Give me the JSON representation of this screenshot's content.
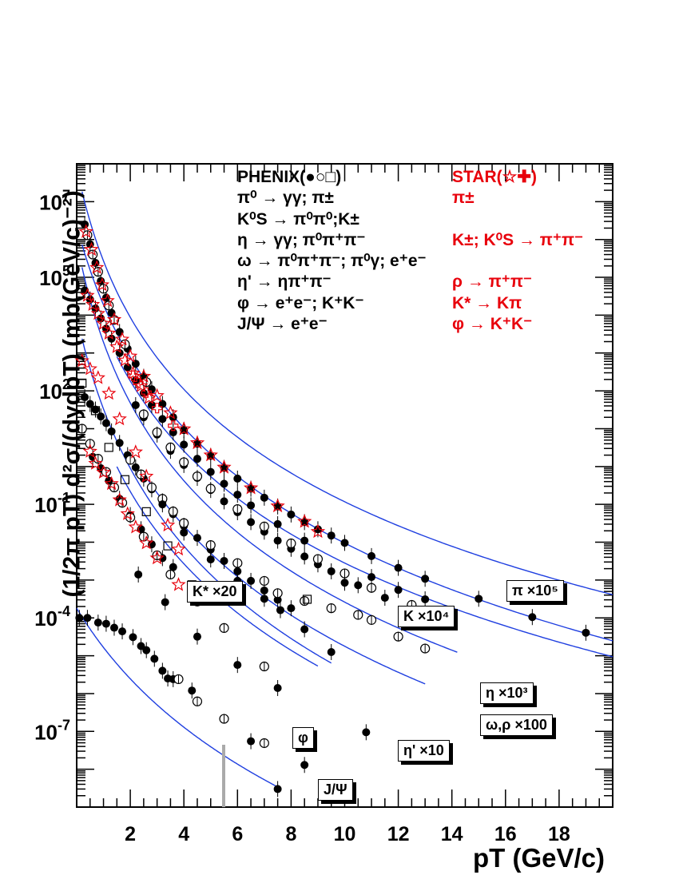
{
  "chart_data": {
    "type": "scatter",
    "title": "",
    "xlabel": "pT (GeV/c)",
    "ylabel": "(1/2π pT) d²σ/(dydpT) (mb(GeV/c)⁻²)",
    "xlim": [
      0,
      20
    ],
    "ylim": [
      1e-09,
      100000000.0
    ],
    "yscale": "log",
    "x_ticks": [
      "2",
      "4",
      "6",
      "8",
      "10",
      "12",
      "14",
      "16",
      "18"
    ],
    "y_ticks": [
      "10^7",
      "10^5",
      "10^2",
      "10^-1",
      "10^-4",
      "10^-7"
    ],
    "legend": {
      "phenix_header": "PHENIX(●○□)",
      "star_header": "STAR(☆✚)",
      "phenix_entries": [
        "π⁰ → γγ; π±",
        "K⁰S → π⁰π⁰;K±",
        "η → γγ; π⁰π⁺π⁻",
        "ω → π⁰π⁺π⁻; π⁰γ; e⁺e⁻",
        "η' → ηπ⁺π⁻",
        "φ → e⁺e⁻; K⁺K⁻",
        "J/Ψ → e⁺e⁻"
      ],
      "star_entries": [
        "π±",
        "",
        "K±; K⁰S → π⁺π⁻",
        "",
        "ρ → π⁺π⁻",
        "K* → Kπ",
        "φ → K⁺K⁻"
      ]
    },
    "series": [
      {
        "label": "π ×10⁵",
        "A": 80000000.0,
        "p0": 1.1,
        "n": 8.8,
        "xmin": 0.2,
        "xmax": 20.0,
        "points": [
          [
            0.3,
            2500000.0
          ],
          [
            0.5,
            750000.0
          ],
          [
            0.7,
            240000.0
          ],
          [
            0.9,
            80000.0
          ],
          [
            1.1,
            29000.0
          ],
          [
            1.3,
            11500.0
          ],
          [
            1.6,
            3600.0
          ],
          [
            1.9,
            1300.0
          ],
          [
            2.2,
            520
          ],
          [
            2.5,
            235
          ],
          [
            2.8,
            110
          ],
          [
            3.2,
            45
          ],
          [
            3.6,
            20
          ],
          [
            4.0,
            9.2
          ],
          [
            4.5,
            4.0
          ],
          [
            5.0,
            1.9
          ],
          [
            5.5,
            0.92
          ],
          [
            6.0,
            0.48
          ],
          [
            6.5,
            0.26
          ],
          [
            7.0,
            0.15
          ],
          [
            7.5,
            0.088
          ],
          [
            8.0,
            0.054
          ],
          [
            8.5,
            0.034
          ],
          [
            9.0,
            0.022
          ],
          [
            9.5,
            0.015
          ],
          [
            10.0,
            0.0096
          ],
          [
            11.0,
            0.0043
          ],
          [
            12.0,
            0.0021
          ],
          [
            13.0,
            0.00108
          ],
          [
            15.0,
            0.00032
          ],
          [
            17.0,
            0.000105
          ],
          [
            19.0,
            4.05e-05
          ]
        ],
        "open": [
          [
            0.4,
            1300000.0
          ],
          [
            0.6,
            400000.0
          ],
          [
            0.8,
            140000.0
          ],
          [
            1.0,
            50000.0
          ],
          [
            1.2,
            18000.0
          ],
          [
            1.4,
            7500.0
          ],
          [
            1.8,
            1700.0
          ],
          [
            2.6,
            170
          ]
        ],
        "stars": [
          [
            0.35,
            1600000.0
          ],
          [
            0.55,
            540000.0
          ],
          [
            0.75,
            180000.0
          ],
          [
            0.95,
            63000.0
          ],
          [
            1.15,
            24000.0
          ],
          [
            1.4,
            7600.0
          ],
          [
            1.7,
            2300.0
          ],
          [
            2.0,
            820
          ],
          [
            2.5,
            240
          ],
          [
            3.0,
            74
          ],
          [
            3.5,
            26
          ],
          [
            4.0,
            9.8
          ],
          [
            4.5,
            4.2
          ],
          [
            5.0,
            2.0
          ],
          [
            5.5,
            0.95
          ],
          [
            6.5,
            0.27
          ],
          [
            7.5,
            0.09
          ],
          [
            8.5,
            0.035
          ],
          [
            9.0,
            0.019
          ]
        ]
      },
      {
        "label": "K ×10⁴",
        "A": 2400000.0,
        "p0": 1.5,
        "n": 9.5,
        "xmin": 0.2,
        "xmax": 20.0,
        "points": [
          [
            0.3,
            45000.0
          ],
          [
            0.5,
            26000.0
          ],
          [
            0.7,
            15000.0
          ],
          [
            0.9,
            8200.0
          ],
          [
            1.1,
            4400.0
          ],
          [
            1.3,
            2400.0
          ],
          [
            1.6,
            1000.0
          ],
          [
            1.9,
            420
          ],
          [
            2.2,
            190
          ],
          [
            2.5,
            87
          ],
          [
            2.8,
            42
          ],
          [
            3.2,
            18
          ],
          [
            3.6,
            8.0
          ],
          [
            4.0,
            3.8
          ],
          [
            4.5,
            1.6
          ],
          [
            5.0,
            0.72
          ],
          [
            5.5,
            0.35
          ],
          [
            6.0,
            0.18
          ],
          [
            6.5,
            0.094
          ],
          [
            7.5,
            0.03
          ],
          [
            8.5,
            0.011
          ],
          [
            10.0,
            0.00085
          ],
          [
            11.0,
            0.0012
          ],
          [
            12.0,
            0.00055
          ],
          [
            13.0,
            0.00031
          ]
        ],
        "open": [],
        "stars": [
          [
            0.4,
            33000.0
          ],
          [
            0.6,
            19000.0
          ],
          [
            0.8,
            11000.0
          ],
          [
            1.0,
            6000.0
          ],
          [
            1.2,
            3300.0
          ],
          [
            1.5,
            1450.0
          ],
          [
            1.8,
            640
          ],
          [
            2.1,
            290
          ],
          [
            2.4,
            135
          ],
          [
            2.7,
            65
          ]
        ],
        "crosses": [
          [
            2.1,
            250
          ],
          [
            2.3,
            160
          ],
          [
            2.6,
            90
          ],
          [
            3.0,
            35
          ],
          [
            3.6,
            12
          ]
        ]
      },
      {
        "label": "η ×10³",
        "A": 800000.0,
        "p0": 1.3,
        "n": 9.0,
        "xmin": 1.5,
        "xmax": 20.0,
        "points": [
          [
            2.2,
            42
          ],
          [
            2.5,
            20
          ],
          [
            3.0,
            7.0
          ],
          [
            3.5,
            2.6
          ],
          [
            4.0,
            1.1
          ],
          [
            4.5,
            0.5
          ],
          [
            5.0,
            0.24
          ],
          [
            5.5,
            0.12
          ],
          [
            6.0,
            0.062
          ],
          [
            6.5,
            0.034
          ],
          [
            7.0,
            0.019
          ],
          [
            7.5,
            0.011
          ],
          [
            8.0,
            0.0067
          ],
          [
            8.5,
            0.0042
          ],
          [
            9.0,
            0.0026
          ],
          [
            9.5,
            0.0017
          ],
          [
            10.5,
            0.00073
          ],
          [
            11.5,
            0.00034
          ]
        ],
        "open": [
          [
            2.5,
            24
          ],
          [
            3.0,
            8.0
          ],
          [
            3.5,
            3.2
          ],
          [
            4.0,
            1.3
          ],
          [
            4.5,
            0.55
          ],
          [
            5.0,
            0.26
          ],
          [
            6.0,
            0.075
          ],
          [
            7.0,
            0.026
          ],
          [
            8.0,
            0.0093
          ],
          [
            9.0,
            0.0036
          ],
          [
            10.0,
            0.0015
          ],
          [
            11.0,
            0.00062
          ],
          [
            12.5,
            0.00022
          ],
          [
            14.0,
            8.2e-05
          ]
        ]
      },
      {
        "label": "ω,ρ ×100",
        "A": 900000.0,
        "p0": 1.1,
        "n": 9.5,
        "xmin": 0.2,
        "xmax": 14.2,
        "points": [
          [
            0.3,
            68
          ],
          [
            0.5,
            45
          ],
          [
            0.7,
            32
          ],
          [
            0.9,
            21
          ],
          [
            1.1,
            14
          ],
          [
            1.3,
            8.5
          ],
          [
            1.6,
            4.2
          ],
          [
            1.9,
            2.0
          ],
          [
            2.2,
            0.95
          ],
          [
            2.5,
            0.48
          ],
          [
            2.8,
            0.25
          ],
          [
            3.2,
            0.12
          ],
          [
            3.6,
            0.055
          ],
          [
            4.0,
            0.027
          ],
          [
            4.5,
            0.013
          ],
          [
            5.0,
            0.0064
          ],
          [
            5.5,
            0.0032
          ],
          [
            6.0,
            0.0017
          ],
          [
            6.5,
            0.00095
          ],
          [
            7.0,
            0.00053
          ],
          [
            7.5,
            0.0003
          ],
          [
            8.0,
            0.00018
          ]
        ],
        "open": [
          [
            2.0,
            1.5
          ],
          [
            2.4,
            0.62
          ],
          [
            2.8,
            0.28
          ],
          [
            3.2,
            0.14
          ],
          [
            3.6,
            0.065
          ],
          [
            4.0,
            0.032
          ],
          [
            5.0,
            0.0084
          ],
          [
            6.0,
            0.0028
          ],
          [
            7.0,
            0.00095
          ],
          [
            7.5,
            0.00045
          ],
          [
            8.5,
            0.00028
          ],
          [
            9.5,
            0.00018
          ],
          [
            10.5,
            0.00012
          ],
          [
            11.0,
            8.8e-05
          ],
          [
            12.0,
            3.2e-05
          ],
          [
            13.0,
            1.55e-05
          ]
        ],
        "squares": [
          [
            0.2,
            160
          ],
          [
            0.7,
            30
          ],
          [
            1.2,
            3.2
          ],
          [
            1.8,
            0.45
          ],
          [
            2.6,
            0.064
          ],
          [
            3.4,
            0.008
          ],
          [
            4.3,
            0.00075
          ],
          [
            8.6,
            0.00031
          ]
        ],
        "stars": [
          [
            0.2,
            620
          ],
          [
            0.5,
            380
          ],
          [
            0.8,
            220
          ],
          [
            1.2,
            85
          ],
          [
            1.6,
            18
          ],
          [
            2.2,
            2.4
          ],
          [
            2.6,
            0.55
          ],
          [
            3.4,
            0.028
          ],
          [
            3.8,
            0.0065
          ]
        ]
      },
      {
        "label": "η' ×10",
        "A": 15000.0,
        "p0": 1.4,
        "n": 9.8,
        "xmin": 2.5,
        "xmax": 13.0,
        "points": [
          [
            3.2,
            0.1
          ],
          [
            4.0,
            0.018
          ],
          [
            5.0,
            0.0035
          ],
          [
            6.0,
            0.00095
          ],
          [
            7.0,
            0.00032
          ],
          [
            7.6,
            0.00016
          ],
          [
            8.5,
            5e-05
          ],
          [
            9.5,
            1.25e-05
          ]
        ],
        "open": []
      },
      {
        "label": "K* ×20",
        "A": 10000.0,
        "p0": 1.3,
        "n": 10.0,
        "xmin": 0.2,
        "xmax": 9.5,
        "points": [
          [
            0.6,
            1.8
          ],
          [
            0.9,
            0.9
          ],
          [
            1.2,
            0.42
          ],
          [
            1.6,
            0.14
          ],
          [
            2.0,
            0.052
          ],
          [
            2.4,
            0.022
          ],
          [
            2.8,
            0.0088
          ],
          [
            3.2,
            0.0038
          ],
          [
            3.6,
            0.0022
          ]
        ],
        "open": [
          [
            0.2,
            10
          ],
          [
            0.5,
            4.0
          ],
          [
            0.8,
            1.6
          ],
          [
            1.1,
            0.72
          ],
          [
            1.4,
            0.28
          ],
          [
            1.7,
            0.11
          ],
          [
            2.0,
            0.045
          ],
          [
            2.5,
            0.014
          ],
          [
            3.0,
            0.0045
          ],
          [
            3.5,
            0.0014
          ],
          [
            4.5,
            0.00027
          ],
          [
            5.5,
            5.4e-05
          ],
          [
            7.0,
            5.2e-06
          ]
        ],
        "stars": [
          [
            0.5,
            2.5
          ],
          [
            0.7,
            1.2
          ],
          [
            1.0,
            0.7
          ],
          [
            1.3,
            0.35
          ],
          [
            1.6,
            0.13
          ],
          [
            1.9,
            0.056
          ],
          [
            2.2,
            0.025
          ],
          [
            2.6,
            0.0095
          ],
          [
            3.0,
            0.0038
          ],
          [
            3.8,
            0.00075
          ]
        ]
      },
      {
        "label": "φ",
        "A": 1000.0,
        "p0": 1.4,
        "n": 9.5,
        "xmin": 1.5,
        "xmax": 9.0,
        "points": [
          [
            2.3,
            0.0014
          ],
          [
            3.3,
            0.00026
          ],
          [
            4.5,
            3.2e-05
          ],
          [
            6.0,
            5.7e-06
          ],
          [
            7.5,
            1.4e-06
          ]
        ],
        "open": []
      },
      {
        "label": "J/Ψ",
        "A": 0.00018,
        "p0": 3.5,
        "n": 9.5,
        "xmin": 0.0,
        "xmax": 7.6,
        "points": [
          [
            0.1,
            0.0001
          ],
          [
            0.4,
            0.0001
          ],
          [
            0.8,
            7.5e-05
          ],
          [
            1.1,
            7e-05
          ],
          [
            1.4,
            5.5e-05
          ],
          [
            1.7,
            4.4e-05
          ],
          [
            2.1,
            3.1e-05
          ],
          [
            2.4,
            1.8e-05
          ],
          [
            2.6,
            1.4e-05
          ],
          [
            2.9,
            8.3e-06
          ],
          [
            3.2,
            4e-06
          ],
          [
            3.4,
            2.5e-06
          ],
          [
            3.6,
            2.4e-06
          ],
          [
            4.3,
            1.2e-06
          ],
          [
            6.5,
            5.5e-08
          ],
          [
            7.5,
            3e-09
          ],
          [
            8.5,
            1.3e-08
          ],
          [
            10.8,
            9.5e-08
          ]
        ],
        "open": [
          [
            3.8,
            2.4e-06
          ],
          [
            4.5,
            6.2e-07
          ],
          [
            5.5,
            2.15e-07
          ],
          [
            7.0,
            4.9e-08
          ]
        ]
      }
    ],
    "labels": [
      "π ×10⁵",
      "K ×10⁴",
      "η ×10³",
      "ω,ρ ×100",
      "η' ×10",
      "K* ×20",
      "φ",
      "J/Ψ"
    ]
  }
}
